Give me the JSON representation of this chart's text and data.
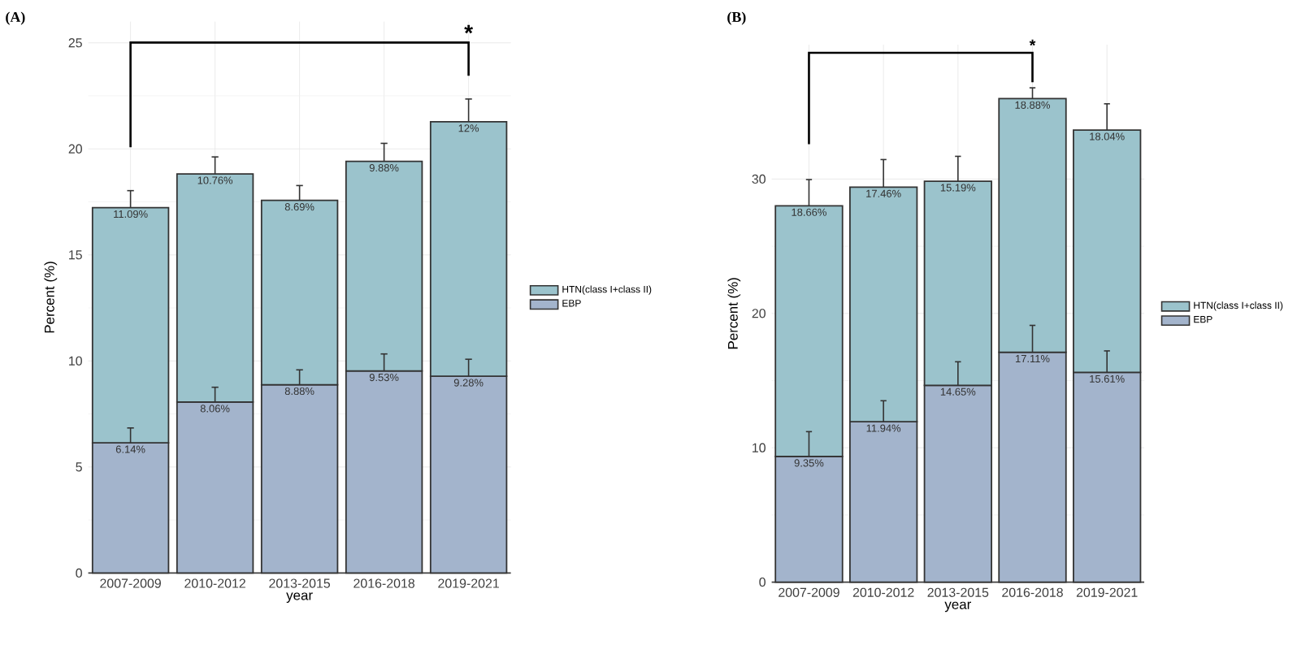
{
  "chart_data": [
    {
      "type": "bar",
      "title": "(A)",
      "xlabel": "year",
      "ylabel": "Percent (%)",
      "categories": [
        "2007-2009",
        "2010-2012",
        "2013-2015",
        "2016-2018",
        "2019-2021"
      ],
      "stacked": true,
      "ylim": [
        0,
        26
      ],
      "yticks": [
        0,
        5,
        10,
        15,
        20,
        25
      ],
      "grid": true,
      "legend": "right",
      "annotations": [
        "*"
      ],
      "series": [
        {
          "name": "EBP",
          "color": "#a3b4cc",
          "values": [
            6.14,
            8.06,
            8.88,
            9.53,
            9.28
          ],
          "errors": [
            [
              6.14,
              6.84
            ],
            [
              8.06,
              8.76
            ],
            [
              8.88,
              9.58
            ],
            [
              9.53,
              10.33
            ],
            [
              9.28,
              10.08
            ]
          ],
          "value_labels": [
            "6.14%",
            "8.06%",
            "8.88%",
            "9.53%",
            "9.28%"
          ]
        },
        {
          "name": "HTN(class I+class II)",
          "color": "#9bc3cc",
          "values": [
            11.09,
            10.76,
            8.69,
            9.88,
            12
          ],
          "errors": [
            [
              17.23,
              18.03
            ],
            [
              18.82,
              19.62
            ],
            [
              17.57,
              18.27
            ],
            [
              19.41,
              20.26
            ],
            [
              21.28,
              22.35
            ]
          ],
          "value_labels": [
            "11.09%",
            "10.76%",
            "8.69%",
            "9.88%",
            "12%"
          ]
        }
      ]
    },
    {
      "type": "bar",
      "title": "(B)",
      "xlabel": "year",
      "ylabel": "Percent (%)",
      "categories": [
        "2007-2009",
        "2010-2012",
        "2013-2015",
        "2016-2018",
        "2019-2021"
      ],
      "stacked": true,
      "ylim": [
        0,
        40
      ],
      "yticks": [
        0,
        10,
        20,
        30
      ],
      "grid": true,
      "legend": "right",
      "annotations": [
        "*"
      ],
      "series": [
        {
          "name": "EBP",
          "color": "#a3b4cc",
          "values": [
            9.35,
            11.94,
            14.65,
            17.11,
            15.61
          ],
          "errors": [
            [
              9.35,
              11.2
            ],
            [
              11.94,
              13.5
            ],
            [
              14.65,
              16.4
            ],
            [
              17.11,
              19.11
            ],
            [
              15.61,
              17.21
            ]
          ],
          "value_labels": [
            "9.35%",
            "11.94%",
            "14.65%",
            "17.11%",
            "15.61%"
          ]
        },
        {
          "name": "HTN(class I+class II)",
          "color": "#9bc3cc",
          "values": [
            18.66,
            17.46,
            15.19,
            18.88,
            18.04
          ],
          "errors": [
            [
              28.01,
              29.96
            ],
            [
              29.4,
              31.45
            ],
            [
              29.84,
              31.69
            ],
            [
              35.99,
              36.79
            ],
            [
              33.65,
              35.6
            ]
          ],
          "value_labels": [
            "18.66%",
            "17.46%",
            "15.19%",
            "18.88%",
            "18.04%"
          ]
        }
      ]
    }
  ]
}
